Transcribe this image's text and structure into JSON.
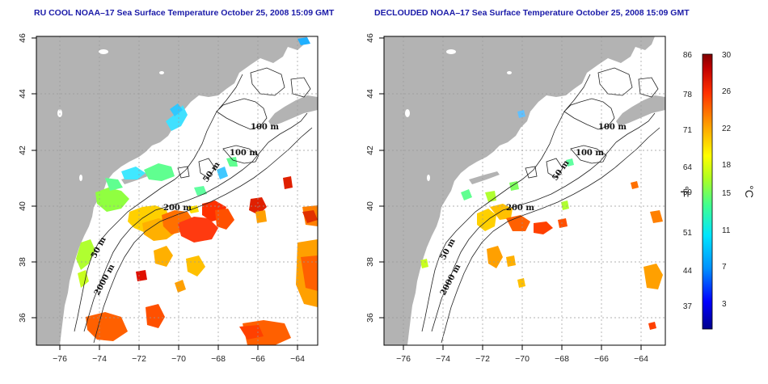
{
  "left_map": {
    "title": "RU COOL NOAA–17 Sea Surface Temperature October 25, 2008 15:09 GMT",
    "x_ticks": [
      "−76",
      "−74",
      "−72",
      "−70",
      "−68",
      "−66",
      "−64"
    ],
    "y_ticks": [
      "46",
      "44",
      "42",
      "40",
      "38",
      "36"
    ],
    "contour_labels": [
      "100 m",
      "100 m",
      "50 m",
      "200 m",
      "50 m",
      "2000 m"
    ]
  },
  "right_map": {
    "title": "DECLOUDED NOAA–17 Sea Surface Temperature October 25, 2008 15:09 GMT",
    "x_ticks": [
      "−76",
      "−74",
      "−72",
      "−70",
      "−68",
      "−66",
      "−64"
    ],
    "y_ticks": [
      "46",
      "44",
      "42",
      "40",
      "38",
      "36"
    ],
    "contour_labels": [
      "100 m",
      "100 m",
      "50 m",
      "200 m",
      "50 m",
      "2000 m"
    ]
  },
  "colorbar": {
    "fahrenheit_ticks": [
      "86",
      "78",
      "71",
      "64",
      "59",
      "51",
      "44",
      "37"
    ],
    "celsius_ticks": [
      "30",
      "26",
      "22",
      "18",
      "15",
      "11",
      "7",
      "3"
    ],
    "fahrenheit_unit": "°F",
    "celsius_unit": "°C",
    "colors": [
      "#00008b",
      "#0000ff",
      "#0080ff",
      "#00ffff",
      "#40ff80",
      "#c0ff00",
      "#ffff00",
      "#ffa000",
      "#ff4000",
      "#c00000",
      "#800000"
    ]
  },
  "colors": {
    "land": "#b3b3b3",
    "title": "#1a1aa8"
  }
}
